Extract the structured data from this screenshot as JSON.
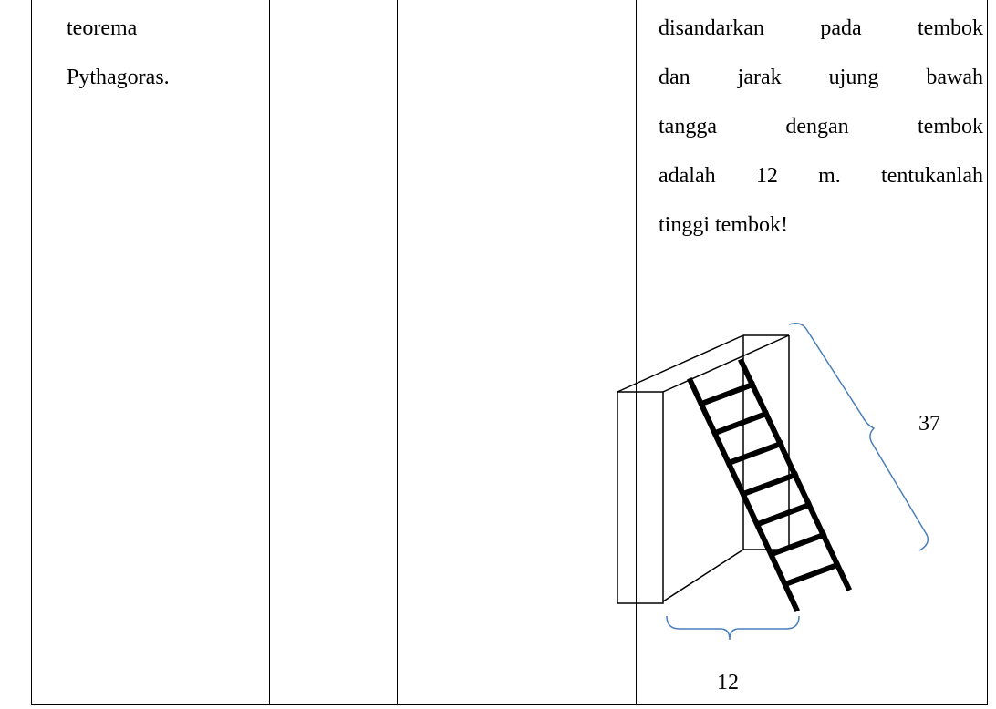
{
  "table": {
    "rows": [
      {
        "cells": [
          {
            "lines": [
              "teorema",
              "Pythagoras."
            ]
          },
          {
            "lines": []
          },
          {
            "lines": []
          },
          {
            "lines": [
              "disandarkan pada tembok",
              "dan jarak ujung bawah",
              "tangga dengan tembok",
              "adalah 12 m. tentukanlah",
              "tinggi tembok!"
            ]
          }
        ]
      }
    ]
  },
  "figure": {
    "ladder_length_label": "37",
    "base_label": "12"
  }
}
